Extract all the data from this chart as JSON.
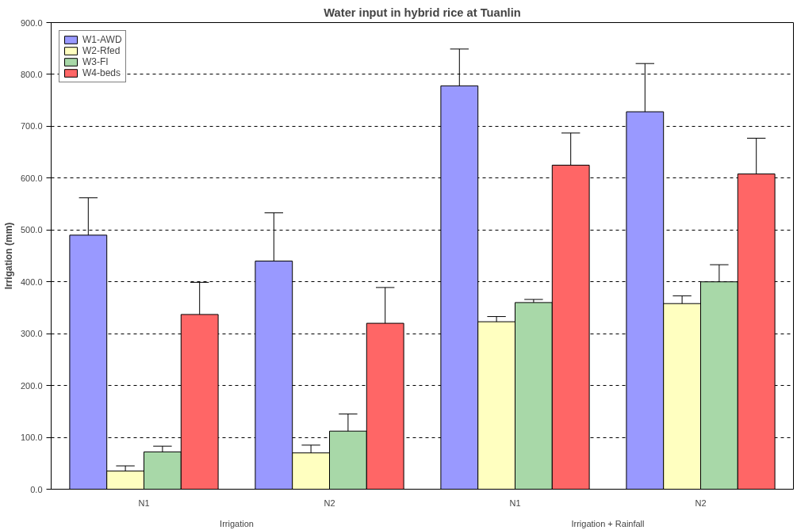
{
  "chart_data": {
    "type": "bar",
    "title": "Water input in hybrid rice at Tuanlin",
    "ylabel": "Irrigation (mm)",
    "categories": [
      "N1",
      "N2",
      "N1",
      "N2"
    ],
    "annotations": [
      "Irrigation",
      "Irrigation + Rainfall"
    ],
    "series": [
      {
        "name": "W1-AWD",
        "color": "#9999ff",
        "values": [
          490,
          440,
          778,
          728
        ],
        "errors": [
          [
            490,
            562
          ],
          [
            440,
            533
          ],
          [
            778,
            849
          ],
          [
            728,
            821
          ]
        ]
      },
      {
        "name": "W2-Rfed",
        "color": "#ffffc0",
        "values": [
          35,
          70,
          323,
          358
        ],
        "errors": [
          [
            35,
            45
          ],
          [
            70,
            85
          ],
          [
            323,
            333
          ],
          [
            358,
            373
          ]
        ]
      },
      {
        "name": "W3-FI",
        "color": "#a8d8a8",
        "values": [
          72,
          112,
          360,
          400
        ],
        "errors": [
          [
            72,
            83
          ],
          [
            112,
            145
          ],
          [
            360,
            366
          ],
          [
            400,
            433
          ]
        ]
      },
      {
        "name": "W4-beds",
        "color": "#ff6666",
        "values": [
          337,
          320,
          625,
          608
        ],
        "errors": [
          [
            337,
            399
          ],
          [
            320,
            389
          ],
          [
            625,
            687
          ],
          [
            608,
            677
          ]
        ]
      }
    ],
    "ylim": [
      0,
      900
    ],
    "yticks": [
      {
        "value": 0,
        "label": "0.0"
      },
      {
        "value": 100,
        "label": "100.0"
      },
      {
        "value": 200,
        "label": "200.0"
      },
      {
        "value": 300,
        "label": "300.0"
      },
      {
        "value": 400,
        "label": "400.0"
      },
      {
        "value": 500,
        "label": "500.0"
      },
      {
        "value": 600,
        "label": "600.0"
      },
      {
        "value": 700,
        "label": "700.0"
      },
      {
        "value": 800,
        "label": "800.0"
      },
      {
        "value": 900,
        "label": "900.0"
      }
    ],
    "grid": "y",
    "legend": "top left"
  }
}
